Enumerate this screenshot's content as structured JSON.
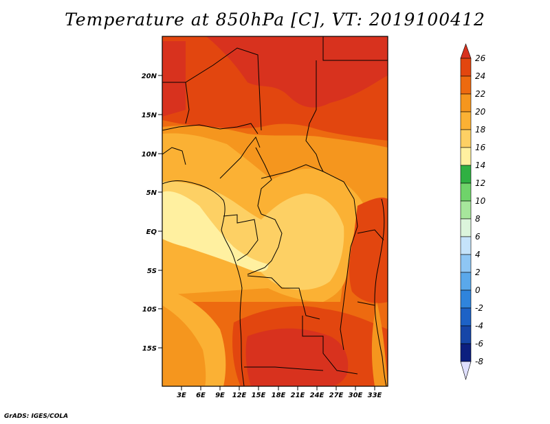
{
  "title": "Temperature at 850hPa [C], VT: 2019100412",
  "credit": "GrADS: IGES/COLA",
  "map": {
    "lat_labels": [
      "20N",
      "15N",
      "10N",
      "5N",
      "EQ",
      "5S",
      "10S",
      "15S"
    ],
    "lon_labels": [
      "3E",
      "6E",
      "9E",
      "12E",
      "15E",
      "18E",
      "21E",
      "24E",
      "27E",
      "30E",
      "33E"
    ]
  },
  "colorbar": {
    "labels": [
      "26",
      "24",
      "22",
      "20",
      "18",
      "16",
      "14",
      "12",
      "10",
      "8",
      "6",
      "4",
      "2",
      "0",
      "-2",
      "-4",
      "-6",
      "-8"
    ],
    "colors": {
      "above_26": "#d8321e",
      "24_26": "#e2460f",
      "22_24": "#ed6a10",
      "20_22": "#f5961e",
      "18_20": "#fbb134",
      "16_18": "#fdd064",
      "14_16": "#fff0a0",
      "12_14": "#2fb042",
      "10_12": "#6fd36a",
      "8_10": "#a7e69c",
      "6_8": "#dcf5dc",
      "4_6": "#c5e3fa",
      "2_4": "#8ec6f4",
      "0_2": "#5aa8ea",
      "m2_0": "#2f84dc",
      "m4_m2": "#1d62c6",
      "m6_m4": "#1646a8",
      "m8_m6": "#0d1f7f",
      "below_m8": "#e0e0ff"
    }
  }
}
